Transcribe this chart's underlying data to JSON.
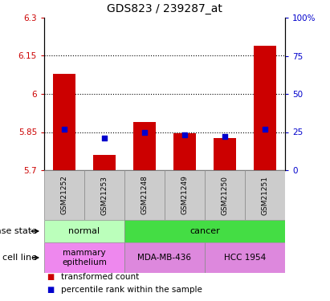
{
  "title": "GDS823 / 239287_at",
  "samples": [
    "GSM21252",
    "GSM21253",
    "GSM21248",
    "GSM21249",
    "GSM21250",
    "GSM21251"
  ],
  "bar_values": [
    6.08,
    5.76,
    5.89,
    5.845,
    5.825,
    6.19
  ],
  "percentile_values": [
    27,
    21,
    25,
    23,
    22,
    27
  ],
  "ymin": 5.7,
  "ymax": 6.3,
  "yticks": [
    5.7,
    5.85,
    6.0,
    6.15,
    6.3
  ],
  "ytick_labels": [
    "5.7",
    "5.85",
    "6",
    "6.15",
    "6.3"
  ],
  "y2min": 0,
  "y2max": 100,
  "y2ticks": [
    0,
    25,
    50,
    75,
    100
  ],
  "y2tick_labels": [
    "0",
    "25",
    "50",
    "75",
    "100%"
  ],
  "grid_lines": [
    5.85,
    6.0,
    6.15
  ],
  "bar_color": "#cc0000",
  "percentile_color": "#0000cc",
  "disease_state_groups": [
    {
      "label": "normal",
      "span": [
        0,
        2
      ],
      "color": "#bbffbb"
    },
    {
      "label": "cancer",
      "span": [
        2,
        6
      ],
      "color": "#44dd44"
    }
  ],
  "cell_line_groups": [
    {
      "label": "mammary\nepithelium",
      "span": [
        0,
        2
      ],
      "color": "#ee88ee"
    },
    {
      "label": "MDA-MB-436",
      "span": [
        2,
        4
      ],
      "color": "#dd88dd"
    },
    {
      "label": "HCC 1954",
      "span": [
        4,
        6
      ],
      "color": "#dd88dd"
    }
  ],
  "legend_items": [
    {
      "label": "transformed count",
      "color": "#cc0000"
    },
    {
      "label": "percentile rank within the sample",
      "color": "#0000cc"
    }
  ],
  "row_labels": [
    "disease state",
    "cell line"
  ],
  "bar_width": 0.55,
  "figsize": [
    4.11,
    3.75
  ],
  "dpi": 100
}
